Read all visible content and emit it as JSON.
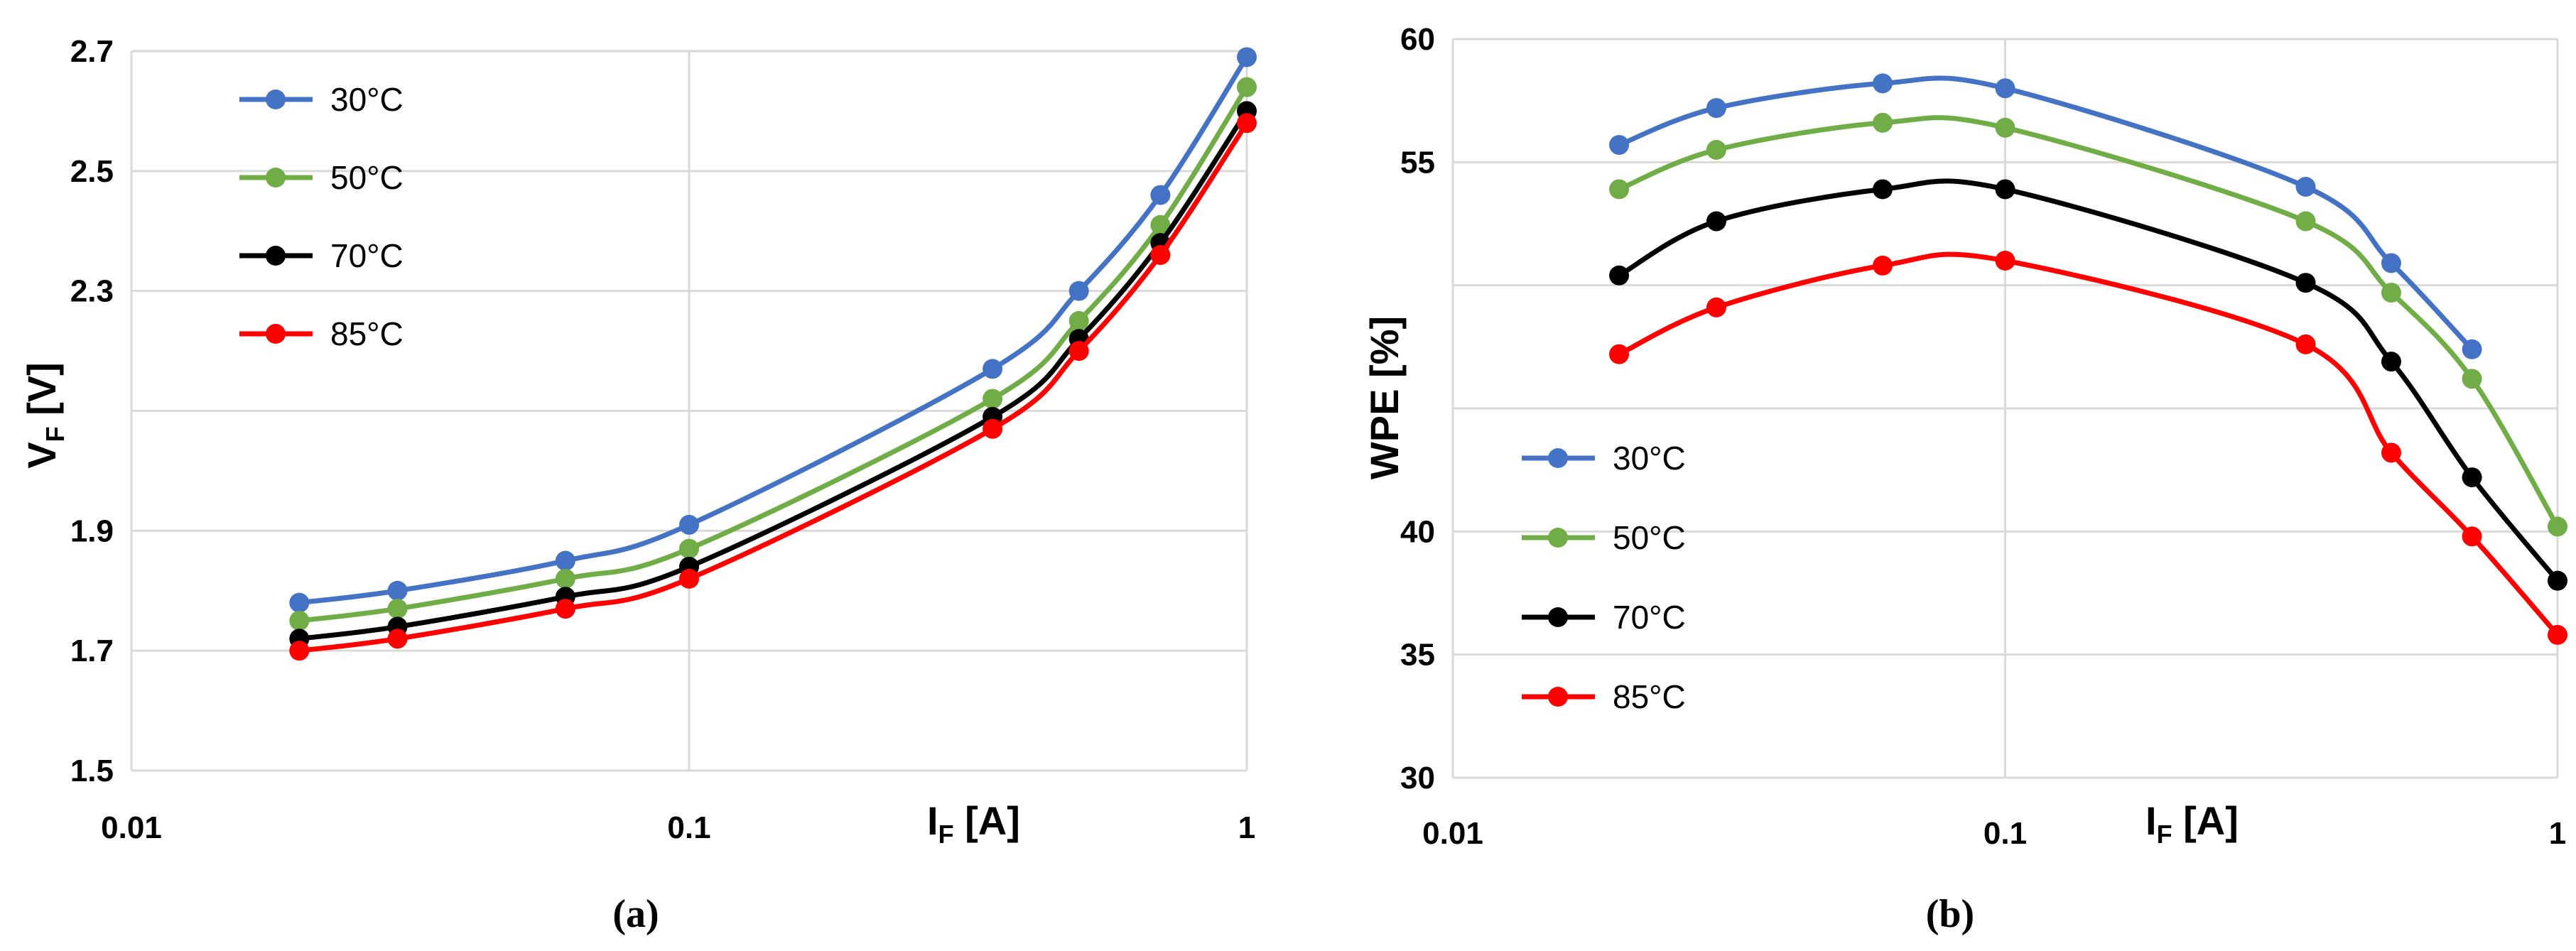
{
  "colors": {
    "s30": "#4472C4",
    "s50": "#70AD47",
    "s70": "#000000",
    "s85": "#FF0000"
  },
  "chart_data": [
    {
      "type": "line",
      "caption": "(a)",
      "title": "",
      "xlabel": {
        "main": "I",
        "sub": "F",
        "rest": " [A]"
      },
      "ylabel": {
        "main": "V",
        "sub": "F",
        "rest": " [V]"
      },
      "xscale": "log",
      "xlim": [
        0.01,
        1
      ],
      "ylim": [
        1.5,
        2.7
      ],
      "xticks": [
        0.01,
        0.1,
        1
      ],
      "xtick_labels": [
        "0.01",
        "0.1",
        "1"
      ],
      "yticks": [
        1.5,
        1.7,
        1.9,
        2.1,
        2.3,
        2.5,
        2.7
      ],
      "ytick_labels": [
        "1.5",
        "1.7",
        "1.9",
        "",
        "2.3",
        "2.5",
        "2.7"
      ],
      "grid": true,
      "legend_position": "top-left",
      "x": [
        0.02,
        0.03,
        0.06,
        0.1,
        0.35,
        0.5,
        0.7,
        1.0
      ],
      "series": [
        {
          "name": "30°C",
          "color_key": "s30",
          "values": [
            1.78,
            1.8,
            1.85,
            1.91,
            2.17,
            2.3,
            2.46,
            2.69
          ]
        },
        {
          "name": "50°C",
          "color_key": "s50",
          "values": [
            1.75,
            1.77,
            1.82,
            1.87,
            2.12,
            2.25,
            2.41,
            2.64
          ]
        },
        {
          "name": "70°C",
          "color_key": "s70",
          "values": [
            1.72,
            1.74,
            1.79,
            1.84,
            2.09,
            2.22,
            2.38,
            2.6
          ]
        },
        {
          "name": "85°C",
          "color_key": "s85",
          "values": [
            1.7,
            1.72,
            1.77,
            1.82,
            2.07,
            2.2,
            2.36,
            2.58
          ]
        }
      ]
    },
    {
      "type": "line",
      "caption": "(b)",
      "title": "",
      "xlabel": {
        "main": "I",
        "sub": "F",
        "rest": " [A]"
      },
      "ylabel": {
        "main": "WPE [%]",
        "sub": "",
        "rest": ""
      },
      "xscale": "log",
      "xlim": [
        0.01,
        1
      ],
      "ylim": [
        30,
        60
      ],
      "xticks": [
        0.01,
        0.1,
        1
      ],
      "xtick_labels": [
        "0.01",
        "0.1",
        "1"
      ],
      "yticks": [
        30,
        35,
        40,
        45,
        50,
        55,
        60
      ],
      "ytick_labels": [
        "30",
        "35",
        "40",
        "",
        "",
        "55",
        "60"
      ],
      "grid": true,
      "legend_position": "middle-left",
      "x": [
        0.02,
        0.03,
        0.06,
        0.1,
        0.35,
        0.5,
        0.7,
        1.0
      ],
      "series": [
        {
          "name": "30°C",
          "color_key": "s30",
          "values": [
            55.7,
            57.2,
            58.2,
            58.0,
            54.0,
            50.9,
            47.4,
            null
          ]
        },
        {
          "name": "50°C",
          "color_key": "s50",
          "values": [
            53.9,
            55.5,
            56.6,
            56.4,
            52.6,
            49.7,
            46.2,
            40.2
          ]
        },
        {
          "name": "70°C",
          "color_key": "s70",
          "values": [
            50.4,
            52.6,
            53.9,
            53.9,
            50.1,
            46.9,
            42.2,
            38.0
          ]
        },
        {
          "name": "85°C",
          "color_key": "s85",
          "values": [
            47.2,
            49.1,
            50.8,
            51.0,
            47.6,
            43.2,
            39.8,
            35.8
          ]
        }
      ]
    }
  ]
}
